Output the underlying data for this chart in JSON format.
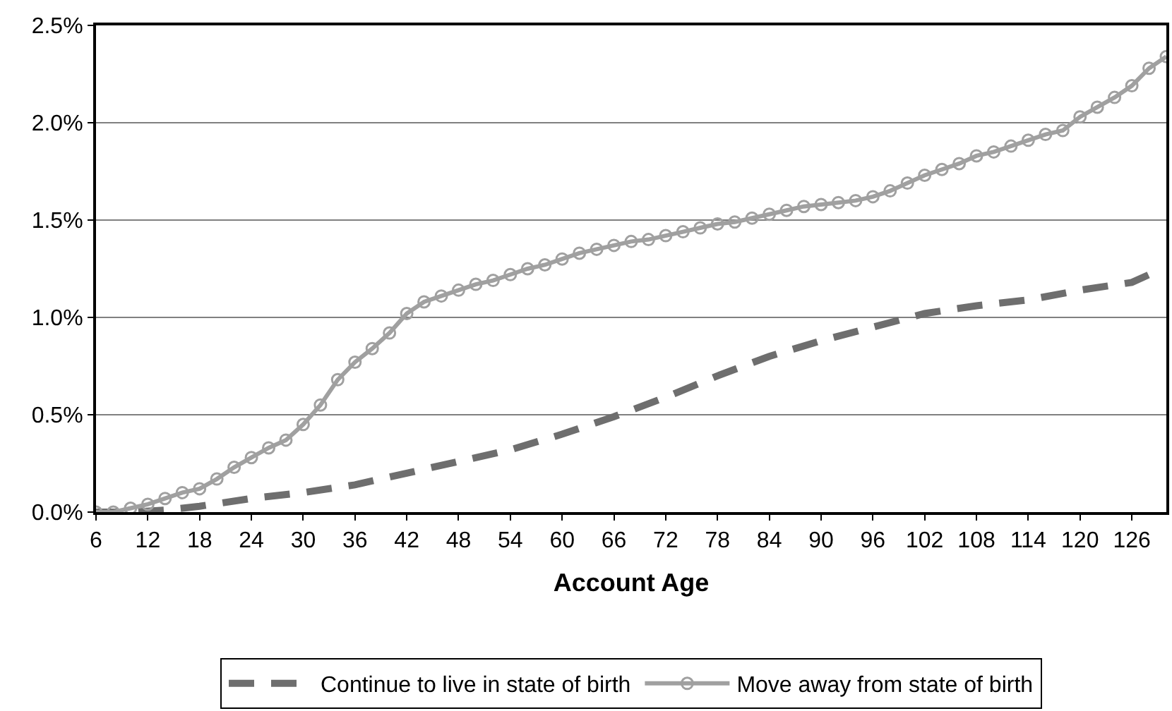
{
  "chart_data": {
    "type": "line",
    "xlabel": "Account Age",
    "xlim": [
      6,
      130
    ],
    "xticks": [
      6,
      12,
      18,
      24,
      30,
      36,
      42,
      48,
      54,
      60,
      66,
      72,
      78,
      84,
      90,
      96,
      102,
      108,
      114,
      120,
      126
    ],
    "ylim": [
      0,
      2.5
    ],
    "yticks": [
      {
        "value": 0,
        "label": "0.0%"
      },
      {
        "value": 0.5,
        "label": "0.5%"
      },
      {
        "value": 1.0,
        "label": "1.0%"
      },
      {
        "value": 1.5,
        "label": "1.5%"
      },
      {
        "value": 2.0,
        "label": "2.0%"
      },
      {
        "value": 2.5,
        "label": "2.5%"
      }
    ],
    "grid": "y",
    "legend": "bottom",
    "series": [
      {
        "name": "Continue to live in state of birth",
        "color": "#6e6e6e",
        "line_style": "dashed",
        "marker": "none",
        "x": [
          6,
          10,
          14,
          18,
          24,
          30,
          36,
          42,
          48,
          54,
          60,
          66,
          72,
          78,
          84,
          90,
          96,
          102,
          108,
          114,
          120,
          126,
          128
        ],
        "values": [
          0,
          0,
          0.01,
          0.03,
          0.07,
          0.1,
          0.14,
          0.2,
          0.26,
          0.32,
          0.4,
          0.49,
          0.59,
          0.7,
          0.8,
          0.88,
          0.95,
          1.02,
          1.06,
          1.09,
          1.14,
          1.18,
          1.22
        ]
      },
      {
        "name": "Move away from state of birth",
        "color": "#a0a0a0",
        "line_style": "solid",
        "marker": "circle",
        "x": [
          6,
          8,
          10,
          12,
          14,
          16,
          18,
          20,
          22,
          24,
          26,
          28,
          30,
          32,
          34,
          36,
          38,
          40,
          42,
          44,
          46,
          48,
          50,
          52,
          54,
          56,
          58,
          60,
          62,
          64,
          66,
          68,
          70,
          72,
          74,
          76,
          78,
          80,
          82,
          84,
          86,
          88,
          90,
          92,
          94,
          96,
          98,
          100,
          102,
          104,
          106,
          108,
          110,
          112,
          114,
          116,
          118,
          120,
          122,
          124,
          126,
          128,
          130
        ],
        "values": [
          0,
          0,
          0.02,
          0.04,
          0.07,
          0.1,
          0.12,
          0.17,
          0.23,
          0.28,
          0.33,
          0.37,
          0.45,
          0.55,
          0.68,
          0.77,
          0.84,
          0.92,
          1.02,
          1.08,
          1.11,
          1.14,
          1.17,
          1.19,
          1.22,
          1.25,
          1.27,
          1.3,
          1.33,
          1.35,
          1.37,
          1.39,
          1.4,
          1.42,
          1.44,
          1.46,
          1.48,
          1.49,
          1.51,
          1.53,
          1.55,
          1.57,
          1.58,
          1.59,
          1.6,
          1.62,
          1.65,
          1.69,
          1.73,
          1.76,
          1.79,
          1.83,
          1.85,
          1.88,
          1.91,
          1.94,
          1.96,
          2.03,
          2.08,
          2.13,
          2.19,
          2.28,
          2.34
        ]
      }
    ]
  }
}
